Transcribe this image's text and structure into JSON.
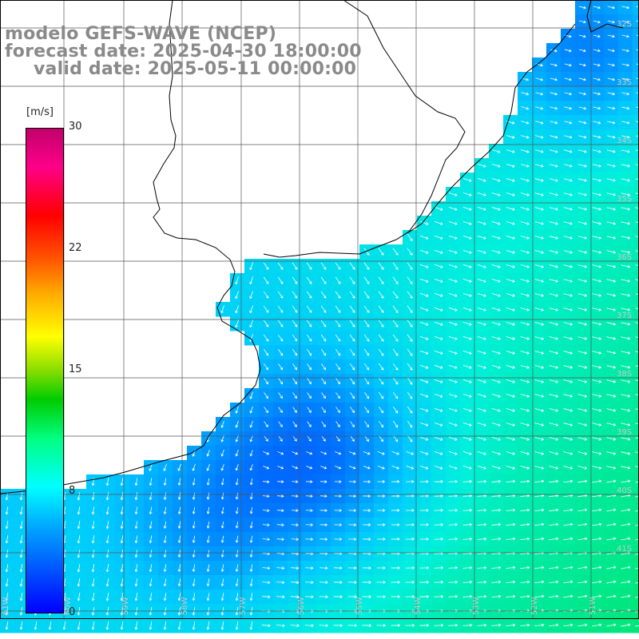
{
  "title": {
    "line1": "modelo GEFS-WAVE (NCEP)",
    "line2": "forecast date: 2025-04-30 18:00:00",
    "line3": "valid date: 2025-05-11 00:00:00"
  },
  "colorbar": {
    "unit": "[m/s]",
    "ticks": [
      "30",
      "22",
      "15",
      "8",
      "0"
    ],
    "tick_values": [
      30,
      22,
      15,
      8,
      0
    ],
    "min": 0,
    "max": 30
  },
  "lat_labels": [
    "32S",
    "33S",
    "34S",
    "35S",
    "36S",
    "37S",
    "38S",
    "39S",
    "40S",
    "41S"
  ],
  "lon_labels": [
    "61W",
    "60W",
    "59W",
    "58W",
    "57W",
    "56W",
    "55W",
    "54W",
    "53W",
    "52W",
    "51W"
  ],
  "colors": {
    "land": "#ffffff",
    "grid": "#555555",
    "coast": "#000000",
    "arrow": "#ffffff",
    "title": "#8a8a8a"
  }
}
